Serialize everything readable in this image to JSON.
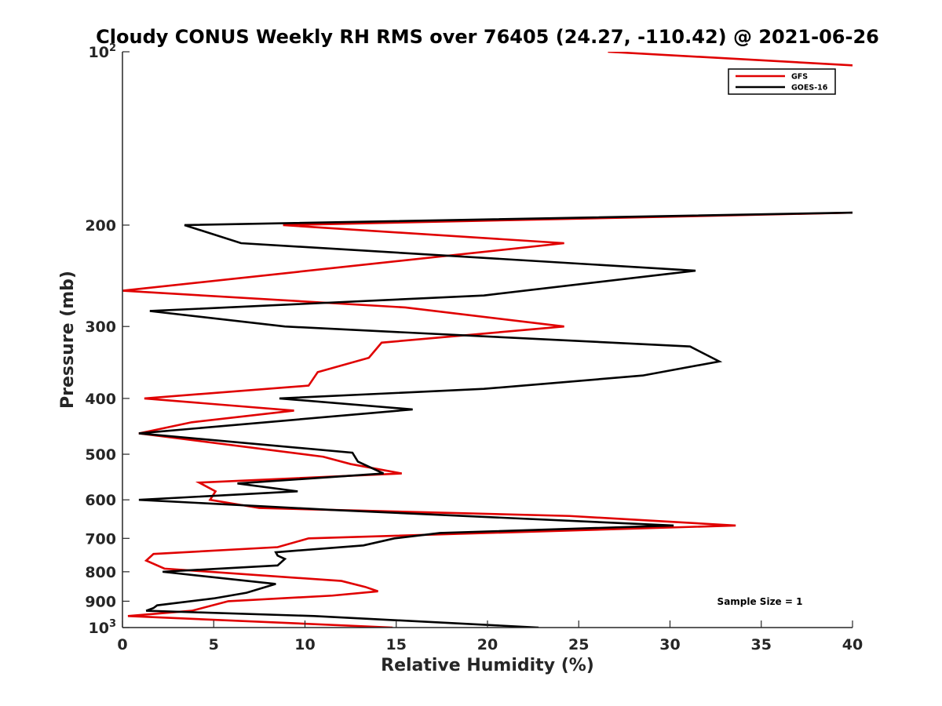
{
  "chart_data": {
    "type": "line",
    "orientation": "profile",
    "title": "Cloudy CONUS Weekly RH RMS over 76405 (24.27, -110.42) @ 2021-06-26",
    "xlabel": "Relative Humidity (%)",
    "ylabel": "Pressure (mb)",
    "xlim": [
      0,
      40
    ],
    "ylim": [
      100,
      1000
    ],
    "yscale": "log",
    "y_reversed": true,
    "grid": false,
    "x_ticks": [
      0,
      5,
      10,
      15,
      20,
      25,
      30,
      35,
      40
    ],
    "x_tick_labels": [
      "0",
      "5",
      "10",
      "15",
      "20",
      "25",
      "30",
      "35",
      "40"
    ],
    "y_ticks": [
      {
        "value": 100,
        "base": "10",
        "exp": "2"
      },
      {
        "value": 200,
        "label": "200"
      },
      {
        "value": 300,
        "label": "300"
      },
      {
        "value": 400,
        "label": "400"
      },
      {
        "value": 500,
        "label": "500"
      },
      {
        "value": 600,
        "label": "600"
      },
      {
        "value": 700,
        "label": "700"
      },
      {
        "value": 800,
        "label": "800"
      },
      {
        "value": 900,
        "label": "900"
      },
      {
        "value": 1000,
        "base": "10",
        "exp": "3"
      }
    ],
    "legend_position": "top-right",
    "annotation": "Sample Size = 1",
    "series": [
      {
        "name": "GFS",
        "color": "#e00000",
        "points": [
          [
            26.6,
            100
          ],
          [
            41.0,
            106
          ],
          [
            41.0,
            190
          ],
          [
            8.8,
            200
          ],
          [
            24.2,
            215
          ],
          [
            0.0,
            260
          ],
          [
            15.5,
            278
          ],
          [
            24.2,
            300
          ],
          [
            14.2,
            320
          ],
          [
            13.5,
            340
          ],
          [
            10.7,
            360
          ],
          [
            10.2,
            380
          ],
          [
            1.2,
            400
          ],
          [
            9.4,
            420
          ],
          [
            3.8,
            440
          ],
          [
            0.9,
            460
          ],
          [
            11.0,
            505
          ],
          [
            12.5,
            520
          ],
          [
            15.3,
            540
          ],
          [
            4.2,
            560
          ],
          [
            5.1,
            580
          ],
          [
            4.8,
            600
          ],
          [
            7.5,
            620
          ],
          [
            24.5,
            640
          ],
          [
            33.6,
            665
          ],
          [
            10.2,
            700
          ],
          [
            8.5,
            725
          ],
          [
            1.7,
            745
          ],
          [
            1.3,
            765
          ],
          [
            2.3,
            790
          ],
          [
            12.0,
            830
          ],
          [
            13.3,
            850
          ],
          [
            14.0,
            865
          ],
          [
            11.5,
            880
          ],
          [
            5.8,
            900
          ],
          [
            3.8,
            935
          ],
          [
            0.3,
            955
          ],
          [
            14.8,
            1000
          ]
        ]
      },
      {
        "name": "GOES-16",
        "color": "#000000",
        "points": [
          [
            41.0,
            190
          ],
          [
            3.4,
            200
          ],
          [
            6.5,
            215
          ],
          [
            31.4,
            240
          ],
          [
            19.8,
            265
          ],
          [
            1.5,
            282
          ],
          [
            8.9,
            300
          ],
          [
            31.1,
            325
          ],
          [
            32.7,
            345
          ],
          [
            28.5,
            365
          ],
          [
            19.8,
            385
          ],
          [
            8.6,
            400
          ],
          [
            15.9,
            418
          ],
          [
            0.9,
            460
          ],
          [
            12.6,
            497
          ],
          [
            12.9,
            515
          ],
          [
            14.3,
            540
          ],
          [
            6.3,
            562
          ],
          [
            9.6,
            580
          ],
          [
            0.9,
            600
          ],
          [
            11.6,
            625
          ],
          [
            30.2,
            665
          ],
          [
            17.4,
            685
          ],
          [
            14.9,
            700
          ],
          [
            13.2,
            720
          ],
          [
            8.4,
            740
          ],
          [
            8.5,
            750
          ],
          [
            8.9,
            760
          ],
          [
            8.5,
            780
          ],
          [
            2.2,
            800
          ],
          [
            8.4,
            840
          ],
          [
            6.8,
            870
          ],
          [
            5.0,
            890
          ],
          [
            1.9,
            915
          ],
          [
            1.7,
            925
          ],
          [
            1.3,
            935
          ],
          [
            10.5,
            955
          ],
          [
            22.8,
            1000
          ]
        ]
      }
    ]
  }
}
